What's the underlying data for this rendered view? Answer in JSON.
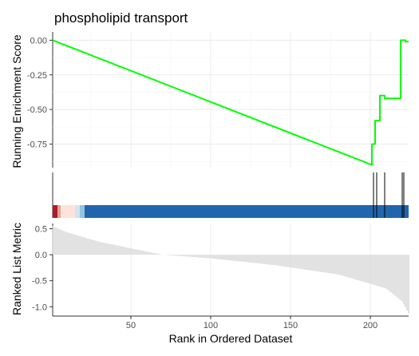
{
  "chart_data": [
    {
      "panel": "running-enrichment",
      "type": "line",
      "title": "phospholipid transport",
      "ylabel": "Running Enrichment Score",
      "ylim": [
        -0.92,
        0.06
      ],
      "xlim": [
        1,
        224
      ],
      "y_ticks": [
        0.0,
        -0.25,
        -0.5,
        -0.75
      ],
      "y_tick_labels": [
        "0.00",
        "-0.25",
        "-0.50",
        "-0.75"
      ],
      "grid": true,
      "line_color": "#00FF00",
      "series": [
        {
          "x": [
            1,
            201,
            201,
            203,
            203,
            206,
            206,
            209,
            209,
            219,
            219,
            222,
            222,
            224
          ],
          "y": [
            0.0,
            -0.9,
            -0.75,
            -0.75,
            -0.58,
            -0.58,
            -0.4,
            -0.4,
            -0.42,
            -0.42,
            0.0,
            0.0,
            -0.01,
            -0.01
          ]
        }
      ]
    },
    {
      "panel": "hits-and-ranking",
      "type": "barcode",
      "hits_x": [
        202,
        204,
        209,
        220,
        221
      ],
      "hit_color": "#000000",
      "color_strip": [
        {
          "from": 1,
          "to": 4,
          "color": "#B2182B"
        },
        {
          "from": 4,
          "to": 6,
          "color": "#E7A28E"
        },
        {
          "from": 6,
          "to": 15,
          "color": "#FDE3DA"
        },
        {
          "from": 15,
          "to": 18,
          "color": "#D1E5F0"
        },
        {
          "from": 18,
          "to": 21,
          "color": "#92C5DE"
        },
        {
          "from": 21,
          "to": 224,
          "color": "#2166AC"
        }
      ]
    },
    {
      "panel": "ranked-list-metric",
      "type": "bar",
      "ylabel": "Ranked List Metric",
      "xlabel": "Rank in Ordered Dataset",
      "n": 224,
      "ylim": [
        -1.18,
        0.6
      ],
      "y_ticks": [
        0.5,
        0.0,
        -0.5,
        -1.0
      ],
      "y_tick_labels": [
        "0.5",
        "0.0",
        "-0.5",
        "-1.0"
      ],
      "x_ticks": [
        50,
        100,
        150,
        200
      ],
      "x_tick_labels": [
        "50",
        "100",
        "150",
        "200"
      ],
      "bar_color": "#BEBEBE",
      "curve": {
        "rank": [
          1,
          10,
          30,
          60,
          70,
          100,
          140,
          180,
          210,
          220,
          224
        ],
        "value": [
          0.55,
          0.43,
          0.25,
          0.06,
          0.0,
          -0.07,
          -0.2,
          -0.38,
          -0.65,
          -0.9,
          -1.13
        ]
      }
    }
  ]
}
